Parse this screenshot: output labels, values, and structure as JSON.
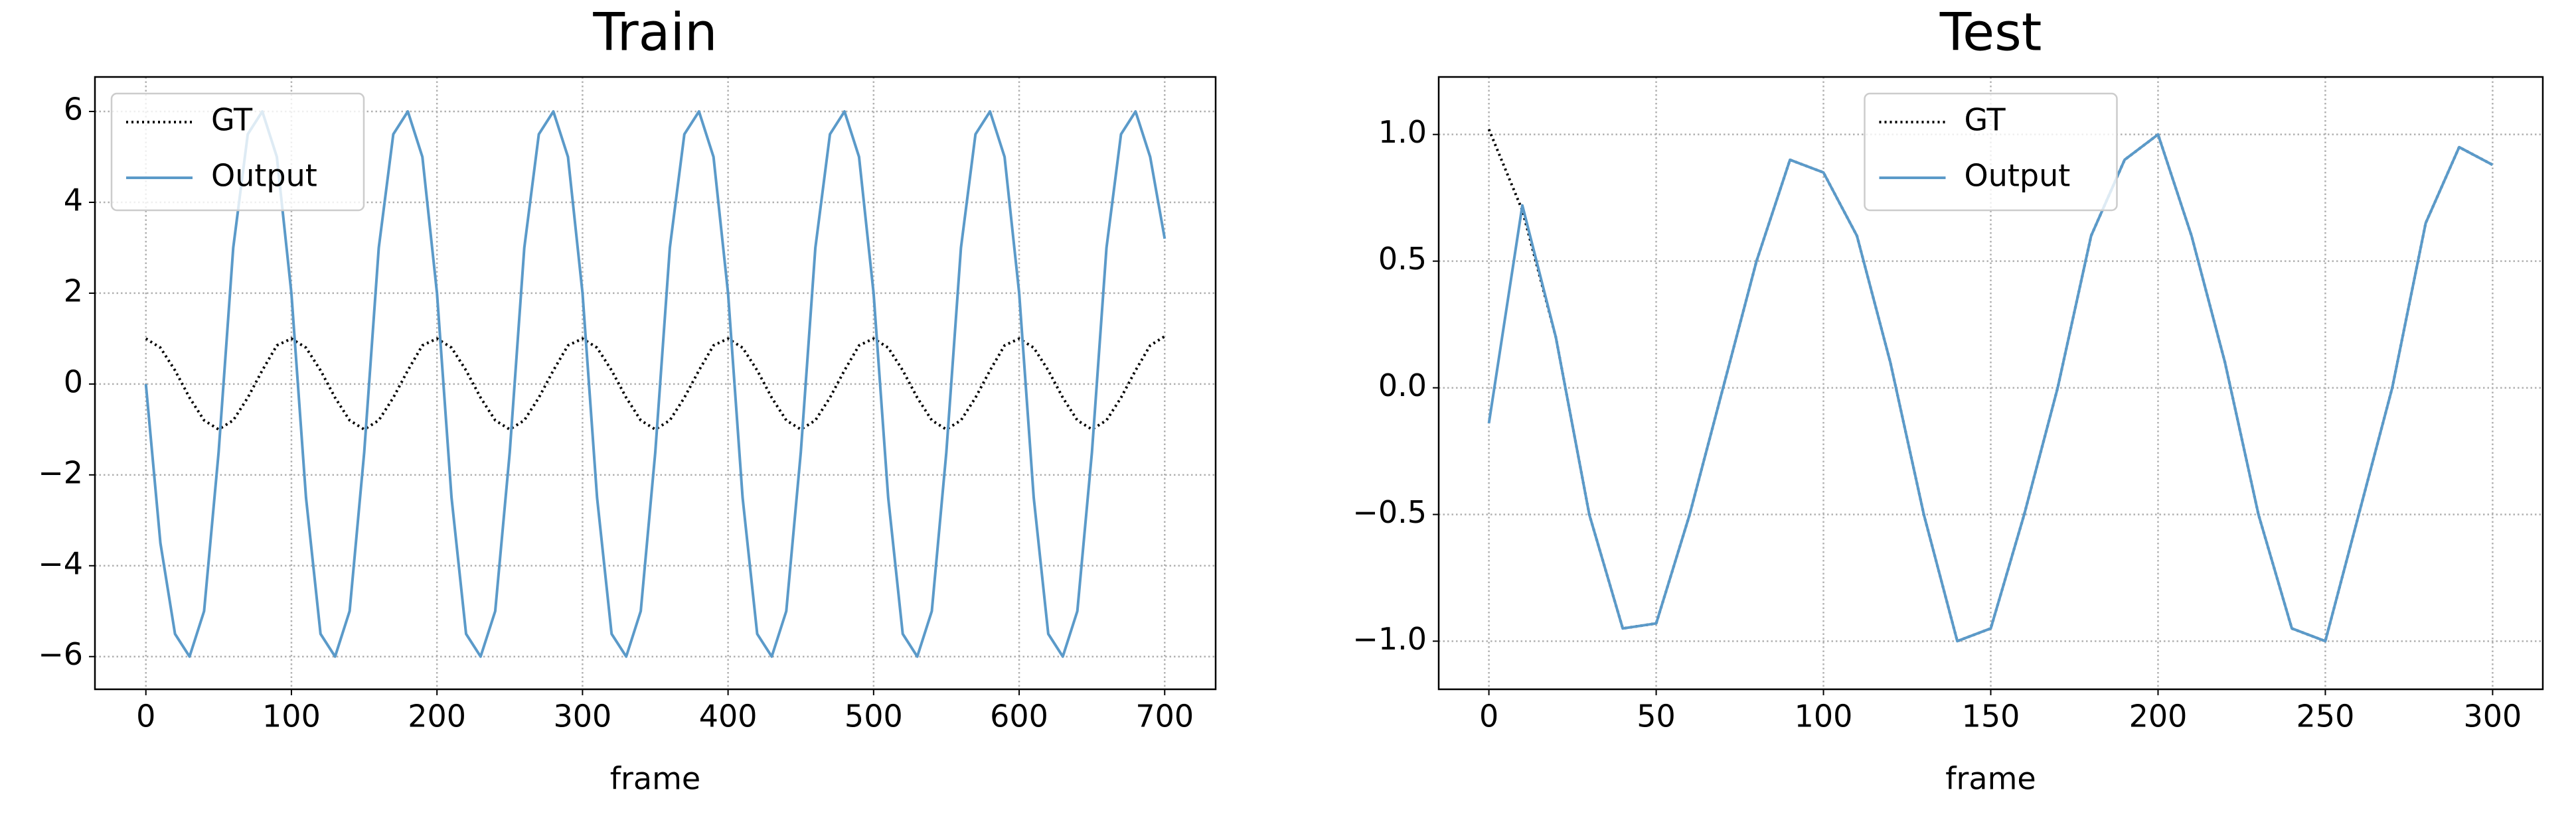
{
  "chart_data": [
    {
      "type": "line",
      "title": "Train",
      "x_label": "frame",
      "x": [
        0,
        10,
        20,
        30,
        40,
        50,
        60,
        70,
        80,
        90,
        100,
        110,
        120,
        130,
        140,
        150,
        160,
        170,
        180,
        190,
        200,
        210,
        220,
        230,
        240,
        250,
        260,
        270,
        280,
        290,
        300,
        310,
        320,
        330,
        340,
        350,
        360,
        370,
        380,
        390,
        400,
        410,
        420,
        430,
        440,
        450,
        460,
        470,
        480,
        490,
        500,
        510,
        520,
        530,
        540,
        550,
        560,
        570,
        580,
        590,
        600,
        610,
        620,
        630,
        640,
        650,
        660,
        670,
        680,
        690,
        700
      ],
      "series": [
        {
          "name": "GT",
          "color": "#000000",
          "style": "dotted",
          "values": [
            1.0,
            0.8,
            0.3,
            -0.3,
            -0.8,
            -1.0,
            -0.8,
            -0.3,
            0.3,
            0.85,
            1.0,
            0.8,
            0.3,
            -0.3,
            -0.8,
            -1.0,
            -0.8,
            -0.3,
            0.3,
            0.85,
            1.0,
            0.8,
            0.3,
            -0.3,
            -0.8,
            -1.0,
            -0.8,
            -0.3,
            0.3,
            0.85,
            1.0,
            0.8,
            0.3,
            -0.3,
            -0.8,
            -1.0,
            -0.8,
            -0.3,
            0.3,
            0.85,
            1.0,
            0.8,
            0.3,
            -0.3,
            -0.8,
            -1.0,
            -0.8,
            -0.3,
            0.3,
            0.85,
            1.0,
            0.8,
            0.3,
            -0.3,
            -0.8,
            -1.0,
            -0.8,
            -0.3,
            0.3,
            0.85,
            1.0,
            0.8,
            0.3,
            -0.3,
            -0.8,
            -1.0,
            -0.8,
            -0.3,
            0.3,
            0.85,
            1.05
          ]
        },
        {
          "name": "Output",
          "color": "#5b9ac9",
          "style": "solid",
          "values": [
            0,
            -3.5,
            -5.5,
            -6.0,
            -5.0,
            -1.5,
            3.0,
            5.5,
            6.0,
            5.0,
            2.0,
            -2.5,
            -5.5,
            -6.0,
            -5.0,
            -1.5,
            3.0,
            5.5,
            6.0,
            5.0,
            2.0,
            -2.5,
            -5.5,
            -6.0,
            -5.0,
            -1.5,
            3.0,
            5.5,
            6.0,
            5.0,
            2.0,
            -2.5,
            -5.5,
            -6.0,
            -5.0,
            -1.5,
            3.0,
            5.5,
            6.0,
            5.0,
            2.0,
            -2.5,
            -5.5,
            -6.0,
            -5.0,
            -1.5,
            3.0,
            5.5,
            6.0,
            5.0,
            2.0,
            -2.5,
            -5.5,
            -6.0,
            -5.0,
            -1.5,
            3.0,
            5.5,
            6.0,
            5.0,
            2.0,
            -2.5,
            -5.5,
            -6.0,
            -5.0,
            -1.5,
            3.0,
            5.5,
            6.0,
            5.0,
            3.2
          ]
        }
      ],
      "xlim": [
        -35,
        735
      ],
      "xticks": [
        0,
        100,
        200,
        300,
        400,
        500,
        600,
        700
      ],
      "ylim": [
        -6.72,
        6.76
      ],
      "yticks": [
        {
          "value": -6,
          "label": "−6"
        },
        {
          "value": -4,
          "label": "−4"
        },
        {
          "value": -2,
          "label": "−2"
        },
        0,
        2,
        4,
        6
      ],
      "grid": true,
      "legend": "upper left"
    },
    {
      "type": "line",
      "title": "Test",
      "x_label": "frame",
      "x": [
        0,
        10,
        20,
        30,
        40,
        50,
        60,
        70,
        80,
        90,
        100,
        110,
        120,
        130,
        140,
        150,
        160,
        170,
        180,
        190,
        200,
        210,
        220,
        230,
        240,
        250,
        260,
        270,
        280,
        290,
        300
      ],
      "series": [
        {
          "name": "GT",
          "color": "#000000",
          "style": "dotted",
          "values": [
            1.02,
            0.7,
            0.2,
            -0.5,
            -0.95,
            -0.93,
            -0.5,
            0.0,
            0.5,
            0.9,
            0.85,
            0.6,
            0.1,
            -0.5,
            -1.0,
            -0.95,
            -0.5,
            0.0,
            0.6,
            0.9,
            1.0,
            0.6,
            0.1,
            -0.5,
            -0.95,
            -1.0,
            -0.5,
            0.0,
            0.65,
            0.95,
            0.88
          ]
        },
        {
          "name": "Output",
          "color": "#5b9ac9",
          "style": "solid",
          "values": [
            -0.14,
            0.72,
            0.2,
            -0.5,
            -0.95,
            -0.93,
            -0.5,
            0.0,
            0.5,
            0.9,
            0.85,
            0.6,
            0.1,
            -0.5,
            -1.0,
            -0.95,
            -0.5,
            0.0,
            0.6,
            0.9,
            1.0,
            0.6,
            0.1,
            -0.5,
            -0.95,
            -1.0,
            -0.5,
            0.0,
            0.65,
            0.95,
            0.88
          ]
        }
      ],
      "xlim": [
        -15,
        315
      ],
      "xticks": [
        0,
        50,
        100,
        150,
        200,
        250,
        300
      ],
      "ylim": [
        -1.19,
        1.227
      ],
      "yticks": [
        {
          "value": -1.0,
          "label": "−1.0"
        },
        {
          "value": -0.5,
          "label": "−0.5"
        },
        {
          "value": 0.0,
          "label": "0.0"
        },
        0.5,
        {
          "value": 1.0,
          "label": "1.0"
        }
      ],
      "grid": true,
      "legend": "upper center"
    }
  ]
}
